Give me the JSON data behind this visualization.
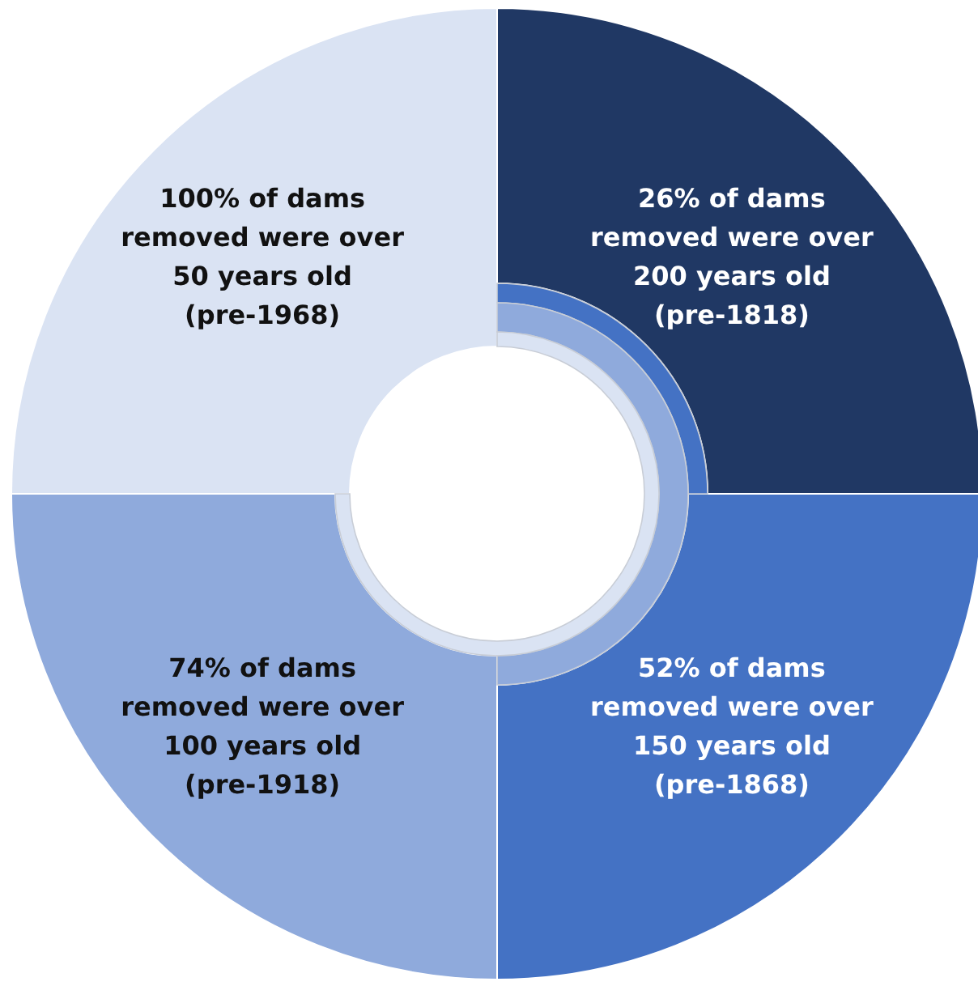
{
  "chart_data": {
    "type": "donut",
    "categories": [
      "26% of dams removed were over 200 years old (pre-1818)",
      "52% of dams removed were over 150 years old (pre-1868)",
      "74% of dams removed were over 100 years old (pre-1918)",
      "100% of dams removed were over 50 years old (pre-1968)"
    ],
    "values": [
      25,
      25,
      25,
      25
    ],
    "colors": [
      "#203864",
      "#4472c4",
      "#8faadc",
      "#dae3f3"
    ]
  }
}
